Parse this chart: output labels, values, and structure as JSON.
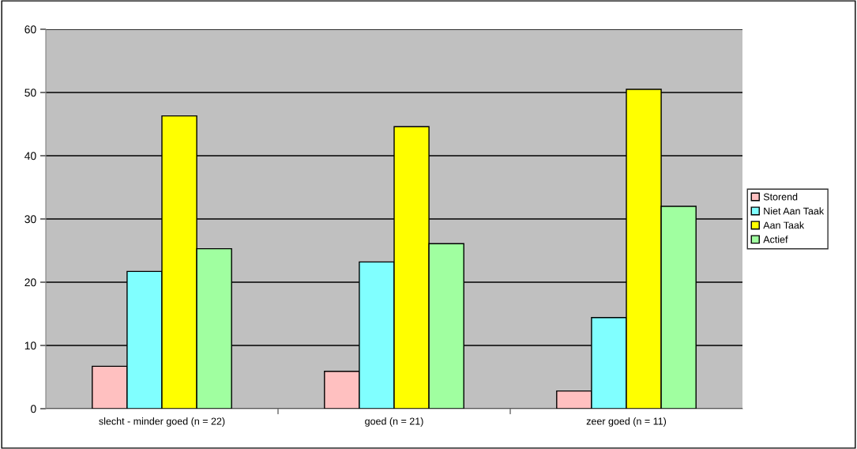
{
  "chart_data": {
    "type": "bar",
    "categories": [
      "slecht - minder goed (n = 22)",
      "goed (n = 21)",
      "zeer goed (n = 11)"
    ],
    "series": [
      {
        "name": "Storend",
        "color": "#ffc0c0",
        "values": [
          6.7,
          5.9,
          2.8
        ]
      },
      {
        "name": "Niet Aan Taak",
        "color": "#80ffff",
        "values": [
          21.7,
          23.2,
          14.4
        ]
      },
      {
        "name": "Aan Taak",
        "color": "#ffff00",
        "values": [
          46.3,
          44.6,
          50.5
        ]
      },
      {
        "name": "Actief",
        "color": "#a0ffa0",
        "values": [
          25.3,
          26.1,
          32.0
        ]
      }
    ],
    "ylim": [
      0,
      60
    ],
    "yticks": [
      0,
      10,
      20,
      30,
      40,
      50,
      60
    ],
    "grid": "y",
    "legend": "right"
  }
}
